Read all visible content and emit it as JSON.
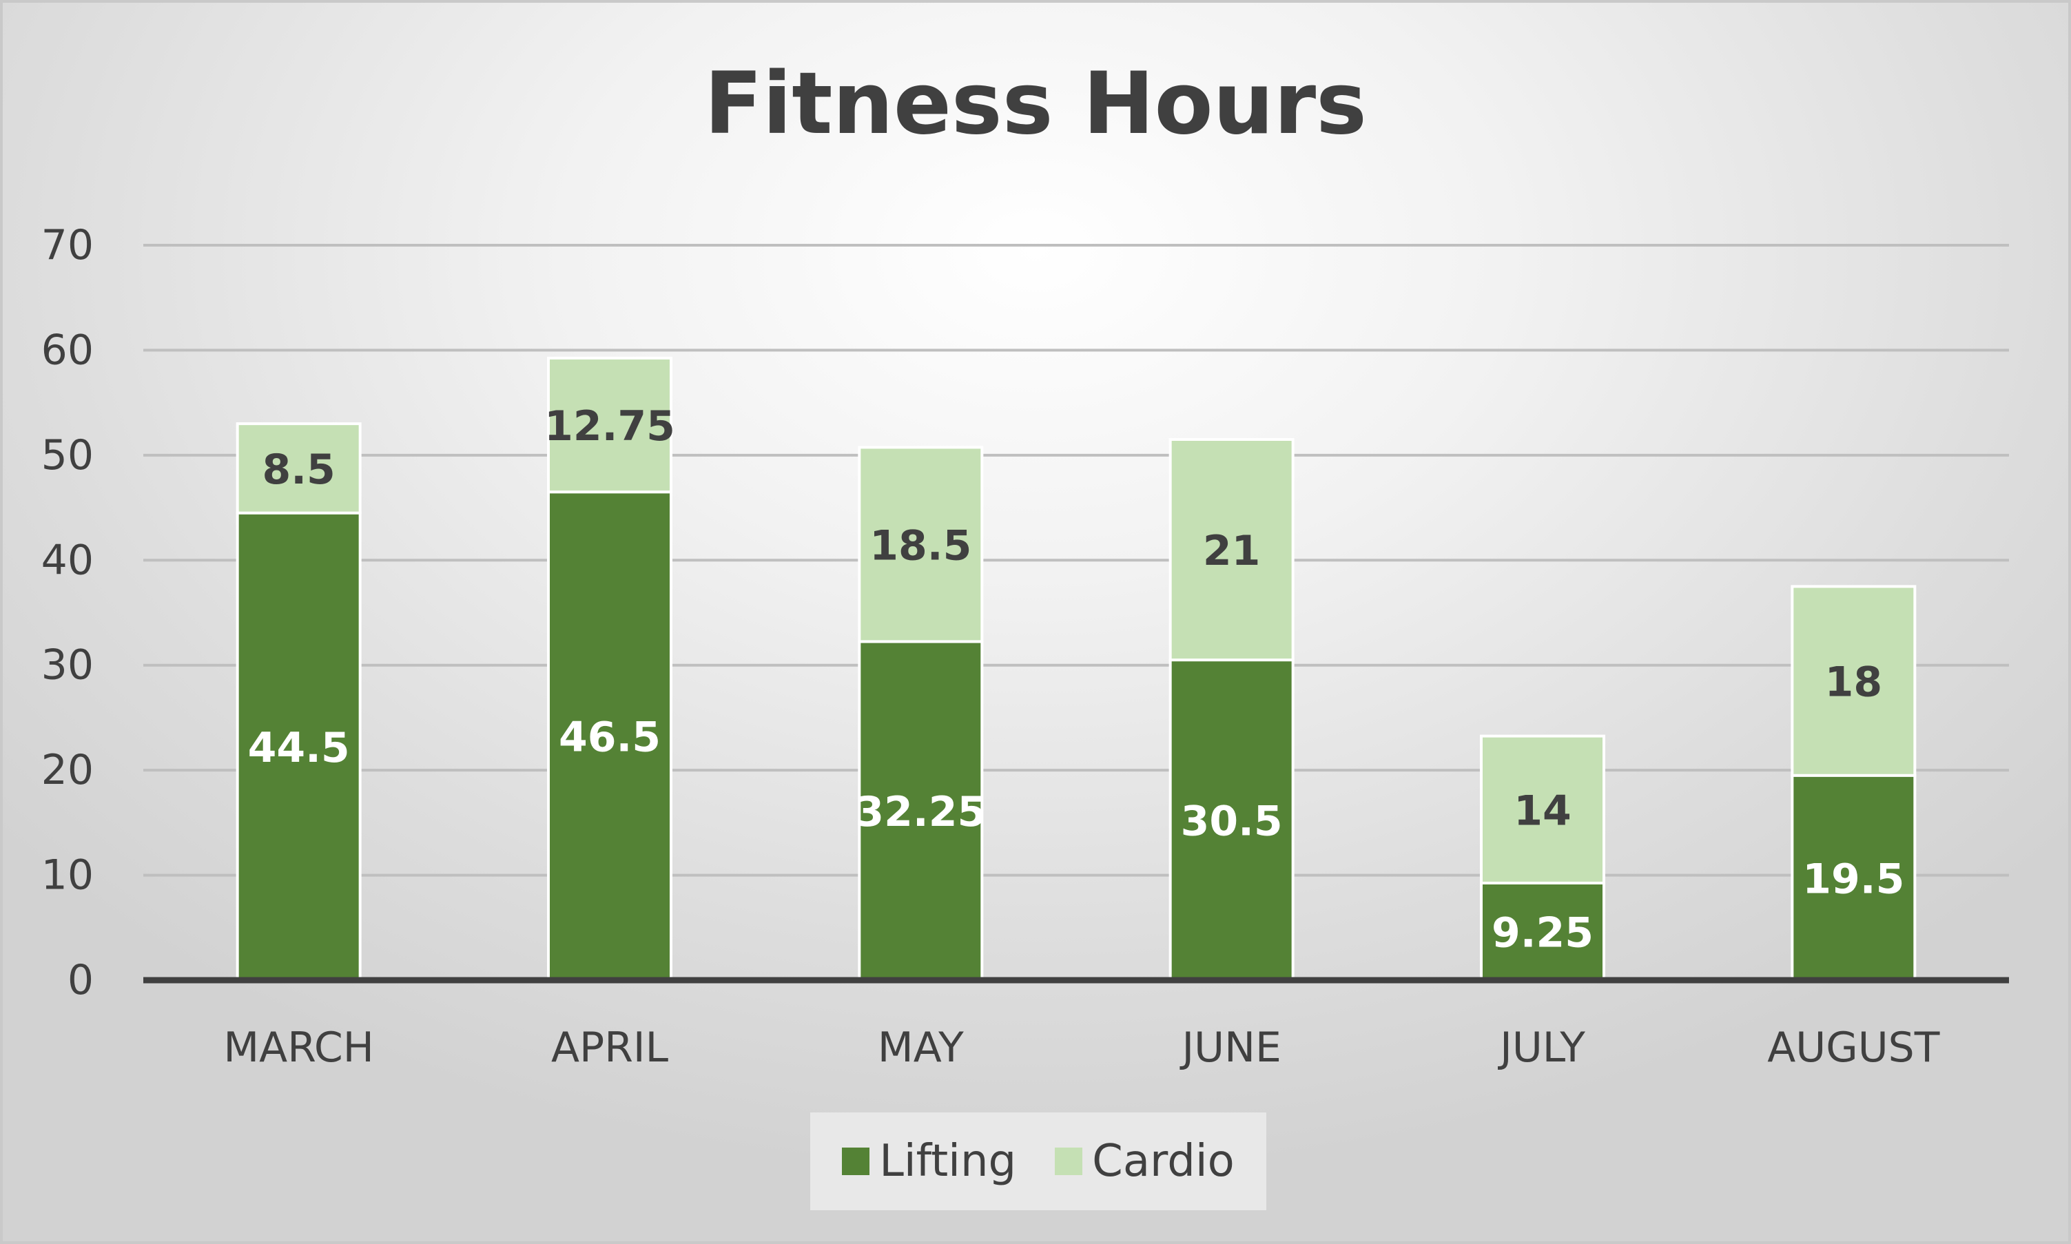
{
  "chart_data": {
    "type": "bar",
    "stacked": true,
    "title": "Fitness Hours",
    "categories": [
      "MARCH",
      "APRIL",
      "MAY",
      "JUNE",
      "JULY",
      "AUGUST"
    ],
    "series": [
      {
        "name": "Lifting",
        "values": [
          44.5,
          46.5,
          32.25,
          30.5,
          9.25,
          19.5
        ],
        "color": "#548235",
        "label_color": "#ffffff"
      },
      {
        "name": "Cardio",
        "values": [
          8.5,
          12.75,
          18.5,
          21,
          14,
          18
        ],
        "color": "#c5e0b4",
        "label_color": "#404040"
      }
    ],
    "ylim": [
      0,
      70
    ],
    "yticks": [
      0,
      10,
      20,
      30,
      40,
      50,
      60,
      70
    ],
    "grid": true,
    "legend_position": "bottom",
    "colors": {
      "gridline": "#bfbfbf",
      "axis": "#404040",
      "tick_label": "#404040",
      "title": "#404040"
    }
  }
}
